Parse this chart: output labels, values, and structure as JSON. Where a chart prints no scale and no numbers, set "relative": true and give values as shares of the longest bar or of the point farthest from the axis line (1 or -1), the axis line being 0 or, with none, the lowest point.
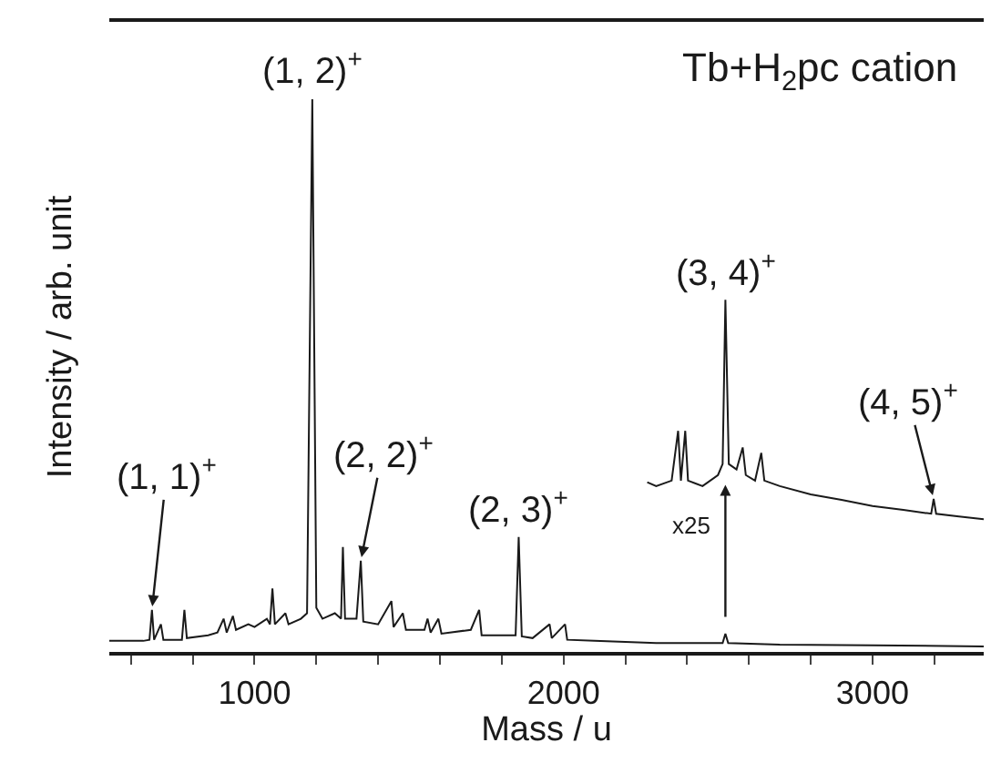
{
  "chart_data": {
    "type": "line",
    "title": "Tb+H$_{2}$pc cation",
    "xlabel": "Mass / u",
    "ylabel": "Intensity / arb. unit",
    "relative": true,
    "grid": false,
    "marker": "none",
    "line_style": "solid",
    "xlim": [
      530,
      3360
    ],
    "xticks": [
      {
        "value": 600,
        "label": null
      },
      {
        "value": 800,
        "label": null
      },
      1000,
      {
        "value": 1200,
        "label": null
      },
      {
        "value": 1400,
        "label": null
      },
      {
        "value": 1600,
        "label": null
      },
      {
        "value": 1800,
        "label": null
      },
      2000,
      {
        "value": 2200,
        "label": null
      },
      {
        "value": 2400,
        "label": null
      },
      {
        "value": 2600,
        "label": null
      },
      {
        "value": 2800,
        "label": null
      },
      3000,
      {
        "value": 3200,
        "label": null
      }
    ],
    "series": [
      {
        "color": "#1a1a1a",
        "x": [
          530,
          640,
          660,
          668,
          675,
          697,
          705,
          765,
          773,
          781,
          850,
          880,
          900,
          910,
          930,
          940,
          980,
          1000,
          1040,
          1050,
          1058,
          1066,
          1100,
          1110,
          1150,
          1170,
          1187,
          1200,
          1220,
          1260,
          1280,
          1286,
          1293,
          1330,
          1344,
          1352,
          1400,
          1443,
          1450,
          1480,
          1490,
          1550,
          1560,
          1570,
          1595,
          1605,
          1700,
          1727,
          1735,
          1800,
          1845,
          1855,
          1865,
          1900,
          1955,
          1962,
          2005,
          2012,
          2100,
          2200,
          2300,
          2450,
          2515,
          2524,
          2533,
          2700,
          3000,
          3360
        ],
        "values": [
          0.02,
          0.02,
          0.022,
          0.076,
          0.022,
          0.05,
          0.022,
          0.022,
          0.076,
          0.025,
          0.03,
          0.035,
          0.06,
          0.035,
          0.065,
          0.04,
          0.05,
          0.045,
          0.06,
          0.05,
          0.115,
          0.05,
          0.07,
          0.05,
          0.06,
          0.07,
          1.0,
          0.08,
          0.06,
          0.07,
          0.06,
          0.19,
          0.06,
          0.06,
          0.165,
          0.055,
          0.05,
          0.092,
          0.045,
          0.07,
          0.04,
          0.04,
          0.06,
          0.035,
          0.06,
          0.033,
          0.04,
          0.076,
          0.03,
          0.03,
          0.03,
          0.208,
          0.028,
          0.025,
          0.05,
          0.025,
          0.05,
          0.022,
          0.02,
          0.018,
          0.016,
          0.016,
          0.016,
          0.033,
          0.016,
          0.013,
          0.012,
          0.01
        ]
      },
      {
        "color": "#1a1a1a",
        "x": [
          2271,
          2300,
          2350,
          2371,
          2380,
          2394,
          2403,
          2450,
          2500,
          2515,
          2524,
          2535,
          2560,
          2580,
          2590,
          2620,
          2640,
          2650,
          2700,
          2800,
          2900,
          3000,
          3100,
          3190,
          3198,
          3206,
          3280,
          3360
        ],
        "values": [
          0.307,
          0.3,
          0.31,
          0.4,
          0.31,
          0.4,
          0.31,
          0.3,
          0.32,
          0.34,
          0.637,
          0.34,
          0.33,
          0.37,
          0.32,
          0.31,
          0.36,
          0.31,
          0.3,
          0.285,
          0.275,
          0.264,
          0.257,
          0.25,
          0.277,
          0.25,
          0.245,
          0.24
        ]
      }
    ],
    "annotations": [
      {
        "text": "(1, 1)$^{+}$",
        "x": 668,
        "y": 0.076
      },
      {
        "text": "(1, 2)$^{+}$",
        "x": 1187,
        "y": 1.0
      },
      {
        "text": "(2, 2)$^{+}$",
        "x": 1344,
        "y": 0.165
      },
      {
        "text": "(2, 3)$^{+}$",
        "x": 1855,
        "y": 0.208
      },
      {
        "text": "(3, 4)$^{+}$",
        "x": 2524,
        "y": 0.637
      },
      {
        "text": "(4, 5)$^{+}$",
        "x": 3198,
        "y": 0.277
      },
      "x25"
    ]
  }
}
